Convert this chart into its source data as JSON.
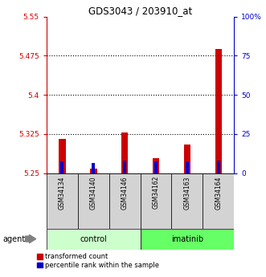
{
  "title": "GDS3043 / 203910_at",
  "samples": [
    "GSM34134",
    "GSM34140",
    "GSM34146",
    "GSM34162",
    "GSM34163",
    "GSM34164"
  ],
  "red_values": [
    5.315,
    5.258,
    5.328,
    5.278,
    5.305,
    5.488
  ],
  "blue_values": [
    5.273,
    5.27,
    5.274,
    5.272,
    5.273,
    5.274
  ],
  "ylim_left": [
    5.25,
    5.55
  ],
  "yticks_left": [
    5.25,
    5.325,
    5.4,
    5.475,
    5.55
  ],
  "ytick_labels_left": [
    "5.25",
    "5.325",
    "5.4",
    "5.475",
    "5.55"
  ],
  "yticks_right": [
    0,
    25,
    50,
    75,
    100
  ],
  "ytick_labels_right": [
    "0",
    "25",
    "50",
    "75",
    "100%"
  ],
  "bar_bottom": 5.25,
  "red_color": "#cc0000",
  "blue_color": "#0000cc",
  "control_color": "#ccffcc",
  "imatinib_color": "#66ff66",
  "sample_bg_color": "#d3d3d3",
  "legend_red": "transformed count",
  "legend_blue": "percentile rank within the sample",
  "agent_label": "agent",
  "group_label_control": "control",
  "group_label_imatinib": "imatinib",
  "red_bar_width": 0.22,
  "blue_bar_width": 0.1,
  "n_samples": 6
}
